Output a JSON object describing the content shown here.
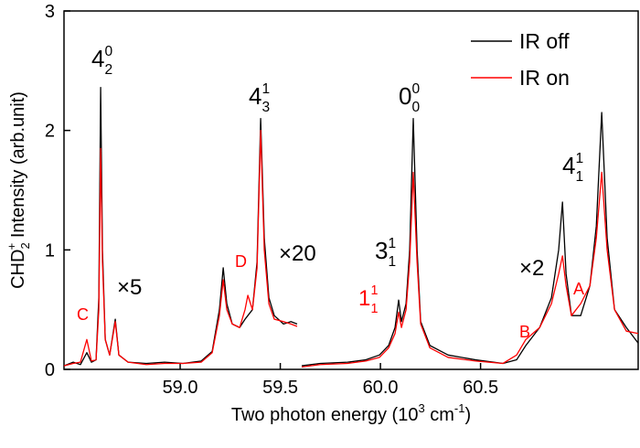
{
  "chart_data": {
    "type": "line",
    "xlabel": [
      {
        "text": "Two photon energy (10"
      },
      {
        "text": "3",
        "shift": "sup"
      },
      {
        "text": " cm"
      },
      {
        "text": "-1",
        "shift": "sup"
      },
      {
        "text": ")"
      }
    ],
    "ylabel": [
      {
        "text": "CHD"
      },
      {
        "text": "2",
        "shift": "sub"
      },
      {
        "text": "+",
        "shift": "sup"
      },
      {
        "text": " Intensity (arb.unit)"
      }
    ],
    "xlim": [
      58.42,
      61.287
    ],
    "ylim": [
      0,
      3
    ],
    "xticks": [
      {
        "value": 59.0,
        "label": "59.0"
      },
      {
        "value": 59.5,
        "label": "59.5"
      },
      {
        "value": 60.0,
        "label": "60.0"
      },
      {
        "value": 60.5,
        "label": "60.5"
      }
    ],
    "yticks": [
      0,
      1,
      2,
      3
    ],
    "legend": "upper right",
    "x": [
      58.42,
      58.466,
      58.502,
      58.534,
      58.557,
      58.58,
      58.594,
      58.603,
      58.612,
      58.626,
      58.648,
      58.676,
      58.694,
      58.74,
      58.831,
      58.922,
      59.014,
      59.105,
      59.16,
      59.196,
      59.215,
      59.233,
      59.26,
      59.297,
      59.324,
      59.338,
      59.361,
      59.384,
      59.402,
      59.42,
      59.443,
      59.47,
      59.516,
      59.553,
      59.584,
      59.594,
      59.607,
      59.699,
      59.836,
      59.927,
      59.995,
      60.041,
      60.073,
      60.091,
      60.105,
      60.128,
      60.146,
      60.164,
      60.183,
      60.201,
      60.247,
      60.338,
      60.475,
      60.612,
      60.68,
      60.726,
      60.795,
      60.854,
      60.89,
      60.909,
      60.927,
      60.954,
      61.0,
      61.046,
      61.078,
      61.105,
      61.132,
      61.169,
      61.228,
      61.287
    ],
    "series": [
      {
        "name": "IR off",
        "color": "#000000",
        "values": [
          0.03,
          0.06,
          0.04,
          0.14,
          0.06,
          0.08,
          0.6,
          2.36,
          1.0,
          0.25,
          0.12,
          0.42,
          0.12,
          0.06,
          0.05,
          0.06,
          0.05,
          0.07,
          0.15,
          0.5,
          0.85,
          0.55,
          0.38,
          0.35,
          0.42,
          0.45,
          0.5,
          0.9,
          2.1,
          1.1,
          0.6,
          0.45,
          0.38,
          0.4,
          0.38,
          null,
          0.03,
          0.05,
          0.06,
          0.08,
          0.12,
          0.2,
          0.35,
          0.58,
          0.4,
          0.55,
          1.0,
          2.1,
          1.0,
          0.4,
          0.2,
          0.12,
          0.08,
          0.05,
          0.08,
          0.2,
          0.35,
          0.6,
          1.0,
          1.4,
          0.8,
          0.45,
          0.45,
          0.7,
          1.2,
          2.15,
          1.1,
          0.5,
          0.35,
          0.22
        ]
      },
      {
        "name": "IR on",
        "color": "#ff0000",
        "values": [
          0.03,
          0.05,
          0.06,
          0.25,
          0.07,
          0.08,
          0.5,
          1.85,
          0.9,
          0.25,
          0.12,
          0.4,
          0.12,
          0.06,
          0.04,
          0.05,
          0.05,
          0.06,
          0.14,
          0.45,
          0.75,
          0.5,
          0.38,
          0.35,
          0.5,
          0.62,
          0.5,
          0.85,
          2.0,
          1.0,
          0.55,
          0.42,
          0.4,
          0.38,
          0.36,
          null,
          0.02,
          0.04,
          0.05,
          0.07,
          0.1,
          0.18,
          0.3,
          0.48,
          0.35,
          0.5,
          0.9,
          1.65,
          0.9,
          0.38,
          0.18,
          0.1,
          0.07,
          0.05,
          0.12,
          0.25,
          0.35,
          0.55,
          0.8,
          0.95,
          0.7,
          0.45,
          0.55,
          0.7,
          1.1,
          1.65,
          1.0,
          0.5,
          0.32,
          0.3
        ]
      }
    ],
    "annotations": [
      {
        "text": "4",
        "sub": "2",
        "sup": "0",
        "color": "#000000"
      },
      {
        "text": "4",
        "sub": "3",
        "sup": "1",
        "color": "#000000"
      },
      {
        "text": "0",
        "sub": "0",
        "sup": "0",
        "color": "#000000"
      },
      {
        "text": "3",
        "sub": "1",
        "sup": "1",
        "color": "#000000"
      },
      {
        "text": "4",
        "sub": "1",
        "sup": "1",
        "color": "#000000"
      },
      {
        "text": "1",
        "sub": "1",
        "sup": "1",
        "color": "#ff0000"
      },
      {
        "text": "×20",
        "color": "#000000"
      },
      {
        "text": "×5",
        "color": "#000000"
      },
      {
        "text": "×2",
        "color": "#000000"
      },
      {
        "text": "C",
        "color": "#ff0000"
      },
      {
        "text": "D",
        "color": "#ff0000"
      },
      {
        "text": "B",
        "color": "#ff0000"
      },
      {
        "text": "A",
        "color": "#ff0000"
      }
    ]
  }
}
